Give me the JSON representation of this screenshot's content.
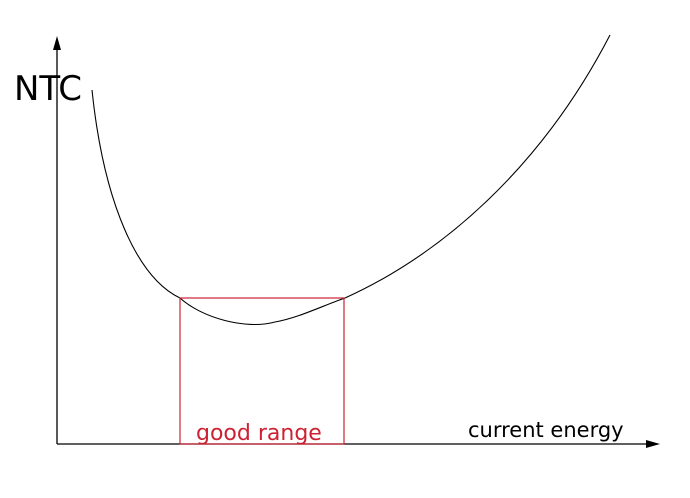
{
  "diagram": {
    "y_axis_label": "NTC",
    "x_axis_label": "current energy",
    "range_label": "good range",
    "colors": {
      "axis": "#000000",
      "curve": "#000000",
      "range": "#cc2233"
    }
  }
}
